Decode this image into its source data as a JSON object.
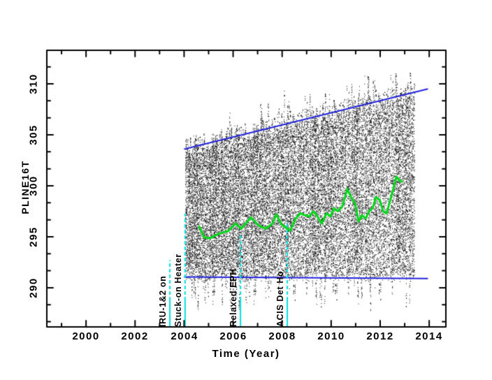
{
  "chart_data": {
    "type": "scatter",
    "title": "",
    "xlabel": "Time (Year)",
    "ylabel": "PLINE16T",
    "xlim": [
      1998.4,
      2014.68
    ],
    "ylim": [
      286.16,
      313.29
    ],
    "grid": false,
    "legend": "none",
    "x_tick_labels": [
      "2000",
      "2002",
      "2004",
      "2006",
      "2008",
      "2010",
      "2012",
      "2014"
    ],
    "x_ticks_major": [
      2000,
      2002,
      2004,
      2006,
      2008,
      2010,
      2012,
      2014
    ],
    "x_minor_step": 1,
    "y_tick_labels": [
      "290",
      "295",
      "300",
      "305",
      "310"
    ],
    "y_ticks_major": [
      290,
      295,
      300,
      305,
      310
    ],
    "y_minor_step": 1.6667,
    "scatter": {
      "description": "dense cloud of raw telemetry samples (black 1px dots) from ~2004.05 to ~2013.4, core band ~291 up to rising upper envelope ~304-310, sparse tails down to ~288 and spikes up to ~312",
      "color": "#000000",
      "x_min": 2004.05,
      "x_max": 2013.4,
      "core_bottom": 291.0,
      "n_columns": 340,
      "points_per_column": [
        45,
        120
      ],
      "seed": 31
    },
    "upper_envelope_line": {
      "name": "upper envelope trend",
      "color": "#2222dd",
      "points": [
        [
          2004.0,
          303.6
        ],
        [
          2013.95,
          309.5
        ]
      ]
    },
    "lower_envelope_line": {
      "name": "lower envelope trend",
      "color": "#2222dd",
      "points": [
        [
          2004.0,
          291.05
        ],
        [
          2013.95,
          290.9
        ]
      ]
    },
    "smoothed_series": {
      "name": "smoothed monthly trend",
      "color": "#00d818",
      "points": [
        [
          2004.62,
          296.0
        ],
        [
          2004.82,
          294.95
        ],
        [
          2005.05,
          294.85
        ],
        [
          2005.42,
          295.3
        ],
        [
          2005.82,
          295.6
        ],
        [
          2006.1,
          296.3
        ],
        [
          2006.33,
          295.8
        ],
        [
          2006.73,
          296.9
        ],
        [
          2007.04,
          296.1
        ],
        [
          2007.33,
          295.8
        ],
        [
          2007.61,
          296.3
        ],
        [
          2007.76,
          297.2
        ],
        [
          2007.98,
          296.2
        ],
        [
          2008.33,
          295.6
        ],
        [
          2008.55,
          296.8
        ],
        [
          2008.75,
          297.3
        ],
        [
          2008.95,
          297.1
        ],
        [
          2009.12,
          297.0
        ],
        [
          2009.27,
          297.5
        ],
        [
          2009.41,
          297.1
        ],
        [
          2009.61,
          296.3
        ],
        [
          2009.81,
          297.3
        ],
        [
          2009.98,
          297.0
        ],
        [
          2010.12,
          297.8
        ],
        [
          2010.27,
          297.5
        ],
        [
          2010.46,
          298.0
        ],
        [
          2010.66,
          299.7
        ],
        [
          2010.83,
          298.8
        ],
        [
          2010.98,
          298.2
        ],
        [
          2011.12,
          296.5
        ],
        [
          2011.26,
          297.1
        ],
        [
          2011.41,
          296.8
        ],
        [
          2011.55,
          297.5
        ],
        [
          2011.69,
          297.8
        ],
        [
          2011.83,
          298.9
        ],
        [
          2011.98,
          298.6
        ],
        [
          2012.12,
          297.5
        ],
        [
          2012.26,
          297.3
        ],
        [
          2012.46,
          299.0
        ],
        [
          2012.66,
          300.9
        ],
        [
          2012.8,
          300.5
        ],
        [
          2012.89,
          300.4
        ]
      ]
    },
    "event_annotations": [
      {
        "label": "IRU-1&2 on",
        "year": 2003.42,
        "line_color": "#00e0e0",
        "line_top_value": 292.7
      },
      {
        "label": "Stuck-on Heater",
        "year": 2004.04,
        "line_color": "#00e0e0",
        "line_top_value": 297.3
      },
      {
        "label": "Relaxed EPH",
        "year": 2006.3,
        "line_color": "#00e0e0",
        "line_top_value": 295.3
      },
      {
        "label": "ACIS Det Ho",
        "year": 2008.21,
        "line_color": "#00e0e0",
        "line_top_value": 296.5
      }
    ]
  }
}
